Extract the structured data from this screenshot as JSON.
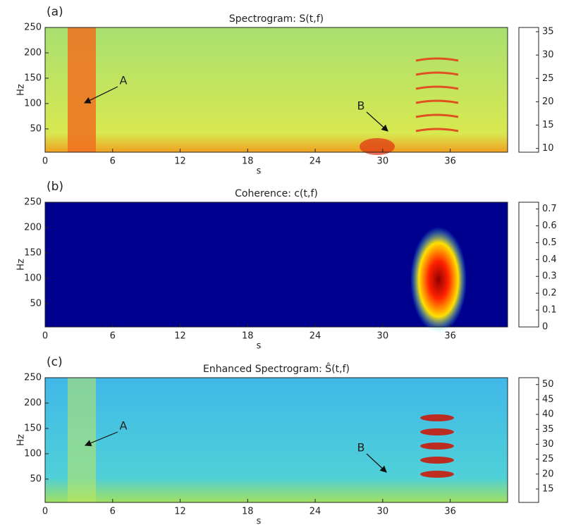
{
  "chart_data": [
    {
      "type": "heatmap",
      "panel": "(a)",
      "title": "Spectrogram: S(t,f)",
      "xlabel": "s",
      "ylabel": "Hz",
      "xlim": [
        0,
        41.1
      ],
      "xticks": [
        0,
        6,
        12,
        18,
        24,
        30,
        36
      ],
      "ylim": [
        4,
        250
      ],
      "yticks": [
        50,
        100,
        150,
        200,
        250
      ],
      "colormap": "jet",
      "clim": [
        9.2,
        35.9
      ],
      "cticks": [
        10,
        15,
        20,
        25,
        30,
        35
      ],
      "annotations": [
        "A",
        "B"
      ]
    },
    {
      "type": "heatmap",
      "panel": "(b)",
      "title": "Coherence: c(t,f)",
      "xlabel": "s",
      "ylabel": "Hz",
      "xlim": [
        0,
        41.1
      ],
      "xticks": [
        0,
        6,
        12,
        18,
        24,
        30,
        36
      ],
      "ylim": [
        4,
        250
      ],
      "yticks": [
        50,
        100,
        150,
        200,
        250
      ],
      "colormap": "jet",
      "clim": [
        0,
        0.74
      ],
      "cticks": [
        0,
        0.1,
        0.2,
        0.3,
        0.4,
        0.5,
        0.6,
        0.7
      ],
      "annotations": []
    },
    {
      "type": "heatmap",
      "panel": "(c)",
      "title": "Enhanced Spectrogram: Ŝ(t,f)",
      "xlabel": "s",
      "ylabel": "Hz",
      "xlim": [
        0,
        41.1
      ],
      "xticks": [
        0,
        6,
        12,
        18,
        24,
        30,
        36
      ],
      "ylim": [
        4,
        250
      ],
      "yticks": [
        50,
        100,
        150,
        200,
        250
      ],
      "colormap": "jet",
      "clim": [
        10.5,
        52.3
      ],
      "cticks": [
        15,
        20,
        25,
        30,
        35,
        40,
        45,
        50
      ],
      "annotations": [
        "A",
        "B"
      ]
    }
  ]
}
